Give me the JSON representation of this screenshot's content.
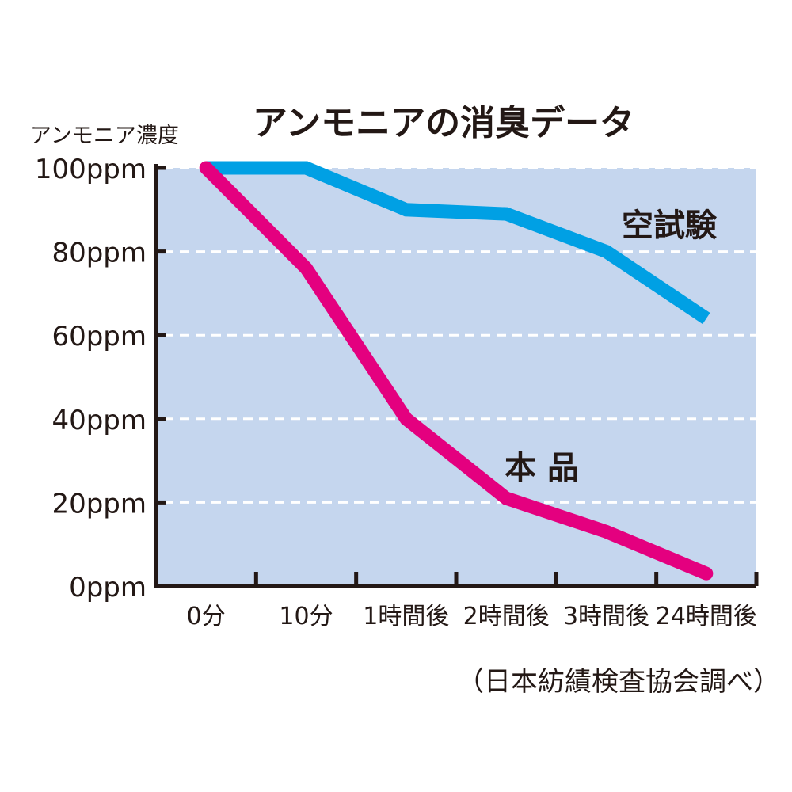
{
  "chart_data": {
    "type": "line",
    "title": "アンモニアの消臭データ",
    "ylabel": "アンモニア濃度",
    "xlabel": "",
    "source_note": "（日本紡績検査協会調べ）",
    "categories": [
      "0分",
      "10分",
      "1時間後",
      "2時間後",
      "3時間後",
      "24時間後"
    ],
    "y_ticks": [
      "0ppm",
      "20ppm",
      "40ppm",
      "60ppm",
      "80ppm",
      "100ppm"
    ],
    "y_tick_values": [
      0,
      20,
      40,
      60,
      80,
      100
    ],
    "ylim": [
      0,
      100
    ],
    "grid": true,
    "series": [
      {
        "name": "空試験",
        "color": "#00a0e4",
        "values": [
          100,
          100,
          90,
          89,
          80,
          64
        ]
      },
      {
        "name": "本 品",
        "color": "#e4007f",
        "values": [
          100,
          76,
          40,
          21,
          13,
          3
        ]
      }
    ],
    "plot_background": "#c5d6ee"
  }
}
